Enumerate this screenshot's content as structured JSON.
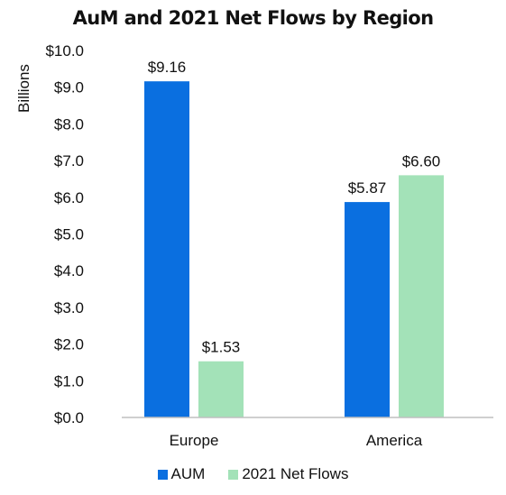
{
  "chart_data": {
    "type": "bar",
    "title": "AuM and 2021 Net Flows by Region",
    "ylabel": "Billions",
    "xlabel": "",
    "categories": [
      "Europe",
      "America"
    ],
    "series": [
      {
        "name": "AUM",
        "values": [
          9.16,
          5.87
        ],
        "labels": [
          "$9.16",
          "$5.87"
        ],
        "color": "#0a6fe0"
      },
      {
        "name": "2021 Net Flows",
        "values": [
          1.53,
          6.6
        ],
        "labels": [
          "$1.53",
          "$6.60"
        ],
        "color": "#a3e2b8"
      }
    ],
    "ylim": [
      0,
      10
    ],
    "yticks": [
      0,
      1,
      2,
      3,
      4,
      5,
      6,
      7,
      8,
      9,
      10
    ],
    "ytick_labels": [
      "$0.0",
      "$1.0",
      "$2.0",
      "$3.0",
      "$4.0",
      "$5.0",
      "$6.0",
      "$7.0",
      "$8.0",
      "$9.0",
      "$10.0"
    ],
    "grid": false,
    "legend_position": "bottom"
  }
}
